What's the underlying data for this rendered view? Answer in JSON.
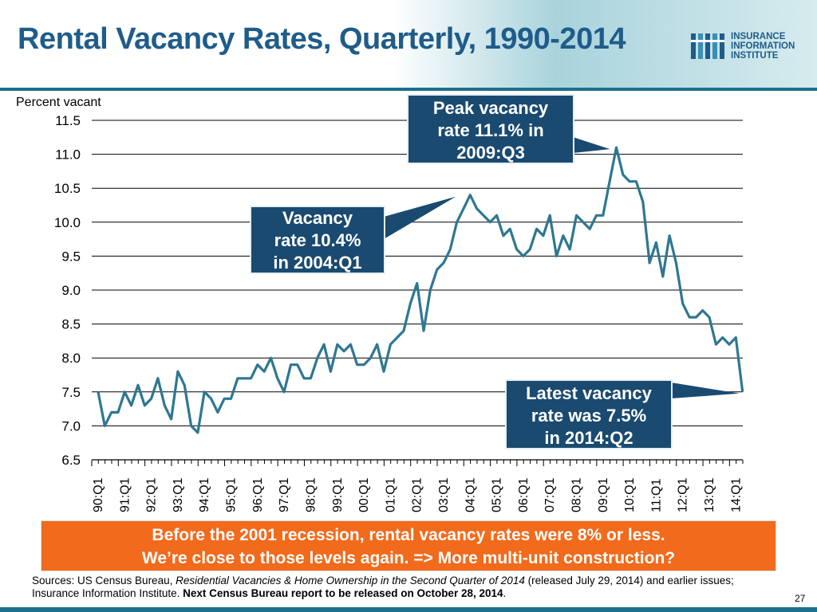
{
  "title": "Rental Vacancy Rates, Quarterly, 1990-2014",
  "logo": {
    "lines": [
      "INSURANCE",
      "INFORMATION",
      "INSTITUTE"
    ]
  },
  "colors": {
    "title": "#1f5c8a",
    "line": "#2e7791",
    "callout": "#1a4a70",
    "banner": "#f26a1b",
    "header_rule": "#1d6f8c"
  },
  "chart_data": {
    "type": "line",
    "title": "Rental Vacancy Rates, Quarterly, 1990-2014",
    "ylabel": "Percent vacant",
    "xlabel": "",
    "ylim": [
      6.5,
      11.5
    ],
    "yticks": [
      "11.5",
      "11.0",
      "10.5",
      "10.0",
      "9.5",
      "9.0",
      "8.5",
      "8.0",
      "7.5",
      "7.0",
      "6.5"
    ],
    "tick_labels": [
      "90:Q1",
      "91:Q1",
      "92:Q1",
      "93:Q1",
      "94:Q1",
      "95:Q1",
      "96:Q1",
      "97:Q1",
      "98:Q1",
      "99:Q1",
      "00:Q1",
      "01:Q1",
      "02:Q1",
      "03:Q1",
      "04:Q1",
      "05:Q1",
      "06:Q1",
      "07:Q1",
      "08:Q1",
      "09:Q1",
      "10:Q1",
      "11:Q1",
      "12:Q1",
      "13:Q1",
      "14:Q1"
    ],
    "x_start": "1990:Q1",
    "x_end": "2014:Q2",
    "grid": true,
    "series": [
      {
        "values": [
          7.5,
          7.0,
          7.2,
          7.2,
          7.5,
          7.3,
          7.6,
          7.3,
          7.4,
          7.7,
          7.3,
          7.1,
          7.8,
          7.6,
          7.0,
          6.9,
          7.5,
          7.4,
          7.2,
          7.4,
          7.4,
          7.7,
          7.7,
          7.7,
          7.9,
          7.8,
          8.0,
          7.7,
          7.5,
          7.9,
          7.9,
          7.7,
          7.7,
          8.0,
          8.2,
          7.8,
          8.2,
          8.1,
          8.2,
          7.9,
          7.9,
          8.0,
          8.2,
          7.8,
          8.2,
          8.3,
          8.4,
          8.8,
          9.1,
          8.4,
          9.0,
          9.3,
          9.4,
          9.6,
          10.0,
          10.2,
          10.4,
          10.2,
          10.1,
          10.0,
          10.1,
          9.8,
          9.9,
          9.6,
          9.5,
          9.6,
          9.9,
          9.8,
          10.1,
          9.5,
          9.8,
          9.6,
          10.1,
          10.0,
          9.9,
          10.1,
          10.1,
          10.6,
          11.1,
          10.7,
          10.6,
          10.6,
          10.3,
          9.4,
          9.7,
          9.2,
          9.8,
          9.4,
          8.8,
          8.6,
          8.6,
          8.7,
          8.6,
          8.2,
          8.3,
          8.2,
          8.3,
          7.5
        ]
      }
    ],
    "annotations": [
      {
        "id": "peak",
        "lines": [
          "Peak vacancy",
          "rate 11.1% in",
          "2009:Q3"
        ],
        "points_to_index": 78
      },
      {
        "id": "2004",
        "lines": [
          "Vacancy",
          "rate 10.4%",
          "in 2004:Q1"
        ],
        "points_to_index": 56
      },
      {
        "id": "latest",
        "lines": [
          "Latest vacancy",
          "rate was 7.5%",
          "in 2014:Q2"
        ],
        "points_to_index": 97
      }
    ]
  },
  "banner": {
    "line1": "Before the 2001 recession, rental vacancy rates were 8% or less.",
    "line2": "We’re close to those levels again. => More multi-unit construction?"
  },
  "sources": {
    "prefix": "Sources: US Census Bureau, ",
    "italic": "Residential Vacancies & Home Ownership in the Second Quarter of 2014",
    "middle": " (released July 29, 2014) and earlier issues; Insurance Information Institute. ",
    "bold": "Next Census Bureau report to be released on October 28, 2014",
    "suffix": "."
  },
  "page_number": "27"
}
